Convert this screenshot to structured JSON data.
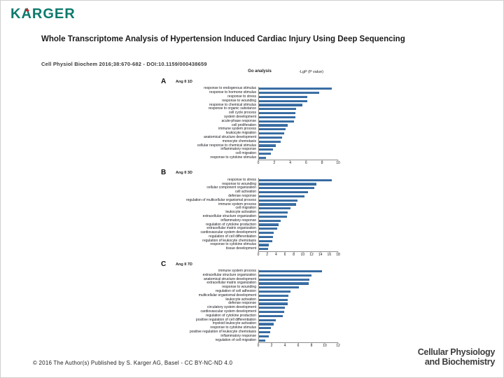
{
  "header": {
    "logo": "KARGER",
    "title": "Whole Transcriptome Analysis of Hypertension Induced Cardiac Injury Using Deep Sequencing",
    "citation": "Cell Physiol Biochem 2016;38:670-682 -  DOI:10.1159/000438659"
  },
  "figure": {
    "title": "Go analysis",
    "value_axis_label": "-LgP (P value)",
    "bar_color": "#2b5c91",
    "bar_color_light": "#4a7fb5",
    "axis_color": "#8a8a8a"
  },
  "chart_data": [
    {
      "type": "bar",
      "orientation": "horizontal",
      "panel_letter": "A",
      "title": "Ang II 1D",
      "categories": [
        "response to endogenous stimulus",
        "response to hormone stimulus",
        "response to stress",
        "response to wounding",
        "response to chemical stimulus",
        "response to organic substance",
        "cell cycle process",
        "system development",
        "acute-phase response",
        "cell proliferation",
        "immune system process",
        "leukocyte migration",
        "anatomical structure development",
        "monocyte chemotaxis",
        "cellular response to chemical stimulus",
        "inflammatory response",
        "cell migration",
        "response to cytokine stimulus"
      ],
      "values": [
        9.2,
        7.6,
        6.1,
        6.1,
        5.5,
        4.7,
        4.6,
        4.6,
        4.4,
        3.6,
        3.4,
        3.2,
        2.9,
        2.7,
        2.1,
        1.8,
        1.5,
        0.9
      ],
      "xlim": [
        0,
        10
      ],
      "xticks": [
        0,
        2,
        4,
        6,
        8,
        10
      ],
      "xlabel": "-LgP (P value)"
    },
    {
      "type": "bar",
      "orientation": "horizontal",
      "panel_letter": "B",
      "title": "Ang II 3D",
      "categories": [
        "response to stress",
        "response to wounding",
        "cellular component organization",
        "cell activation",
        "defense response",
        "regulation of multicellular organismal process",
        "immune system process",
        "cell migration",
        "leukocyte activation",
        "extracellular structure organization",
        "inflammatory response",
        "regulation of cytokine production",
        "extracellular matrix organization",
        "cardiovascular system development",
        "regulation of cell differentiation",
        "regulation of leukocyte chemotaxis",
        "response to cytokine stimulus",
        "tissue development"
      ],
      "values": [
        16.6,
        13.1,
        12.6,
        11.2,
        10.3,
        8.7,
        8.5,
        7.1,
        6.6,
        6.4,
        4.9,
        4.5,
        4.1,
        3.4,
        3.2,
        3.1,
        2.3,
        2.1
      ],
      "xlim": [
        0,
        18
      ],
      "xticks": [
        0,
        2,
        4,
        6,
        8,
        10,
        12,
        14,
        16,
        18
      ],
      "xlabel": "-LgP (P value)"
    },
    {
      "type": "bar",
      "orientation": "horizontal",
      "panel_letter": "C",
      "title": "Ang II 7D",
      "categories": [
        "immune system process",
        "extracellular structure organization",
        "anatomical structure development",
        "extracellular matrix organization",
        "response to wounding",
        "regulation of cell adhesion",
        "multicellular organismal development",
        "leukocyte activation",
        "defense response",
        "circulatory system development",
        "cardiovascular system development",
        "regulation of cytokine production",
        "positive regulation of cell differentiation",
        "myeloid leukocyte activation",
        "response to cytokine stimulus",
        "positive regulation of leukocyte chemotaxis",
        "inflammatory response",
        "regulation of cell migration"
      ],
      "values": [
        9.6,
        8.0,
        7.6,
        7.5,
        6.1,
        4.8,
        4.5,
        4.4,
        4.4,
        3.9,
        3.8,
        3.6,
        2.5,
        2.2,
        1.8,
        1.7,
        1.5,
        1.0
      ],
      "xlim": [
        0,
        12
      ],
      "xticks": [
        0,
        2,
        4,
        6,
        8,
        10,
        12
      ],
      "xlabel": "-LgP (P value)"
    }
  ],
  "footer": {
    "copyright": "© 2016 The Author(s) Published by S. Karger AG, Basel -  CC BY-NC-ND 4.0",
    "journal_name_line1": "Cellular Physiology",
    "journal_name_line2": "and Biochemistry"
  }
}
